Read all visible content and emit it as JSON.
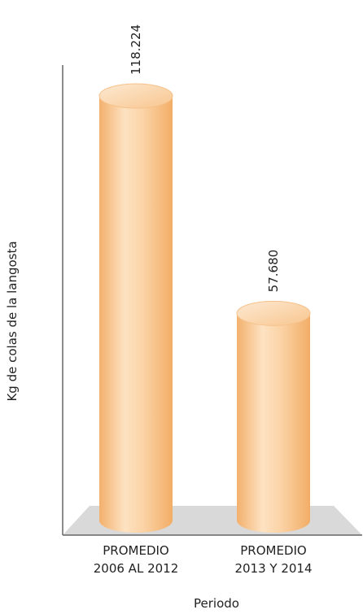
{
  "chart_data": {
    "type": "bar",
    "title": "",
    "xlabel": "Periodo",
    "ylabel": "Kg de colas de la langosta",
    "categories": [
      [
        "PROMEDIO",
        "2006 AL 2012"
      ],
      [
        "PROMEDIO",
        "2013 Y 2014"
      ]
    ],
    "values": [
      118224,
      57680
    ],
    "value_labels": [
      "118.224",
      "57.680"
    ],
    "ylim": [
      0,
      130000
    ],
    "grid": false,
    "style": "3d-cylinder",
    "colors": {
      "bar_light": "#fde3c4",
      "bar_mid": "#f9c793",
      "bar_dark": "#f3b272",
      "floor": "#d9d9d9",
      "axis": "#666666"
    }
  }
}
